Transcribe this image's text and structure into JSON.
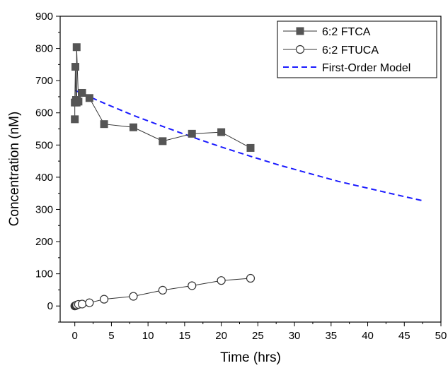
{
  "chart_data": {
    "type": "scatter",
    "xlabel": "Time (hrs)",
    "ylabel": "Concentration (nM)",
    "xlim": [
      -2,
      50
    ],
    "ylim": [
      -50,
      900
    ],
    "x_ticks": [
      0,
      5,
      10,
      15,
      20,
      25,
      30,
      35,
      40,
      45,
      50
    ],
    "y_ticks": [
      0,
      100,
      200,
      300,
      400,
      500,
      600,
      700,
      800,
      900
    ],
    "legend_position": "top-right",
    "series": [
      {
        "name": "6:2 FTCA",
        "marker": "filled-square",
        "color": "#555555",
        "line_color": "#333333",
        "points": [
          {
            "x": 0,
            "y": 580
          },
          {
            "x": 0.0,
            "y": 632
          },
          {
            "x": 0.08,
            "y": 743
          },
          {
            "x": 0.17,
            "y": 640
          },
          {
            "x": 0.25,
            "y": 632
          },
          {
            "x": 0.25,
            "y": 804
          },
          {
            "x": 0.5,
            "y": 635
          },
          {
            "x": 1,
            "y": 662
          },
          {
            "x": 2,
            "y": 646
          },
          {
            "x": 4,
            "y": 565
          },
          {
            "x": 8,
            "y": 555
          },
          {
            "x": 12,
            "y": 512
          },
          {
            "x": 16,
            "y": 535
          },
          {
            "x": 20,
            "y": 540
          },
          {
            "x": 24,
            "y": 491
          }
        ]
      },
      {
        "name": "6:2 FTUCA",
        "marker": "open-circle",
        "color": "#333333",
        "line_color": "#333333",
        "points": [
          {
            "x": 0,
            "y": 0
          },
          {
            "x": 0.08,
            "y": 1
          },
          {
            "x": 0.17,
            "y": 2
          },
          {
            "x": 0.25,
            "y": 3
          },
          {
            "x": 0.5,
            "y": 5
          },
          {
            "x": 1,
            "y": 6
          },
          {
            "x": 2,
            "y": 10
          },
          {
            "x": 4,
            "y": 21
          },
          {
            "x": 8,
            "y": 30
          },
          {
            "x": 12,
            "y": 49
          },
          {
            "x": 16,
            "y": 63
          },
          {
            "x": 20,
            "y": 79
          },
          {
            "x": 24,
            "y": 86
          }
        ]
      },
      {
        "name": "First-Order Model",
        "style": "dashed-line",
        "color": "#1a1aff",
        "points": [
          {
            "x": 0,
            "y": 670
          },
          {
            "x": 4,
            "y": 630
          },
          {
            "x": 8,
            "y": 592
          },
          {
            "x": 12,
            "y": 558
          },
          {
            "x": 16,
            "y": 525
          },
          {
            "x": 20,
            "y": 494
          },
          {
            "x": 24,
            "y": 465
          },
          {
            "x": 28,
            "y": 437
          },
          {
            "x": 32,
            "y": 412
          },
          {
            "x": 36,
            "y": 387
          },
          {
            "x": 40,
            "y": 366
          },
          {
            "x": 44,
            "y": 345
          },
          {
            "x": 47.5,
            "y": 327
          }
        ]
      }
    ]
  }
}
